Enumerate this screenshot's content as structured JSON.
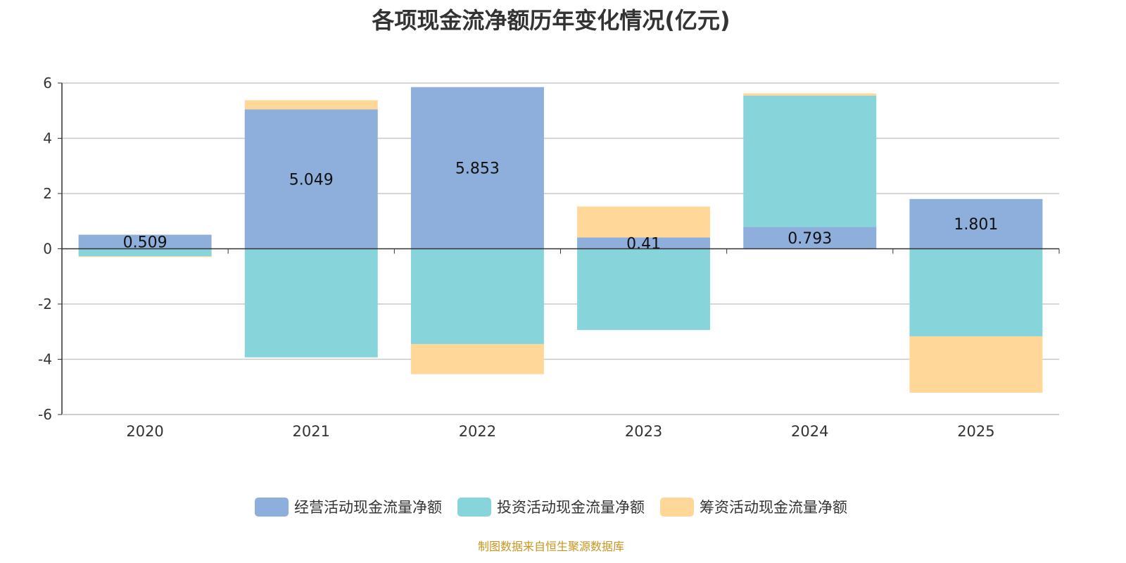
{
  "chart_data": {
    "type": "bar",
    "stacked": true,
    "title": "各项现金流净额历年变化情况(亿元)",
    "categories": [
      "2020",
      "2021",
      "2022",
      "2023",
      "2024",
      "2025"
    ],
    "ylim": [
      -6,
      6
    ],
    "yticks": [
      6,
      4,
      2,
      0,
      -2,
      -4,
      -6
    ],
    "grid": true,
    "legend_position": "bottom",
    "series": [
      {
        "name": "经营活动现金流量净额",
        "color": "#8eaedb",
        "values": [
          0.509,
          5.049,
          5.853,
          0.41,
          0.793,
          1.801
        ],
        "labels": [
          "0.509",
          "5.049",
          "5.853",
          "0.41",
          "0.793",
          "1.801"
        ]
      },
      {
        "name": "投资活动现金流量净额",
        "color": "#87d5da",
        "values": [
          -0.27,
          -3.93,
          -3.45,
          -2.94,
          4.75,
          -3.17
        ]
      },
      {
        "name": "筹资活动现金流量净额",
        "color": "#ffd899",
        "values": [
          -0.03,
          0.33,
          -1.09,
          1.12,
          0.08,
          -2.04
        ]
      }
    ]
  },
  "source": "制图数据来自恒生聚源数据库"
}
